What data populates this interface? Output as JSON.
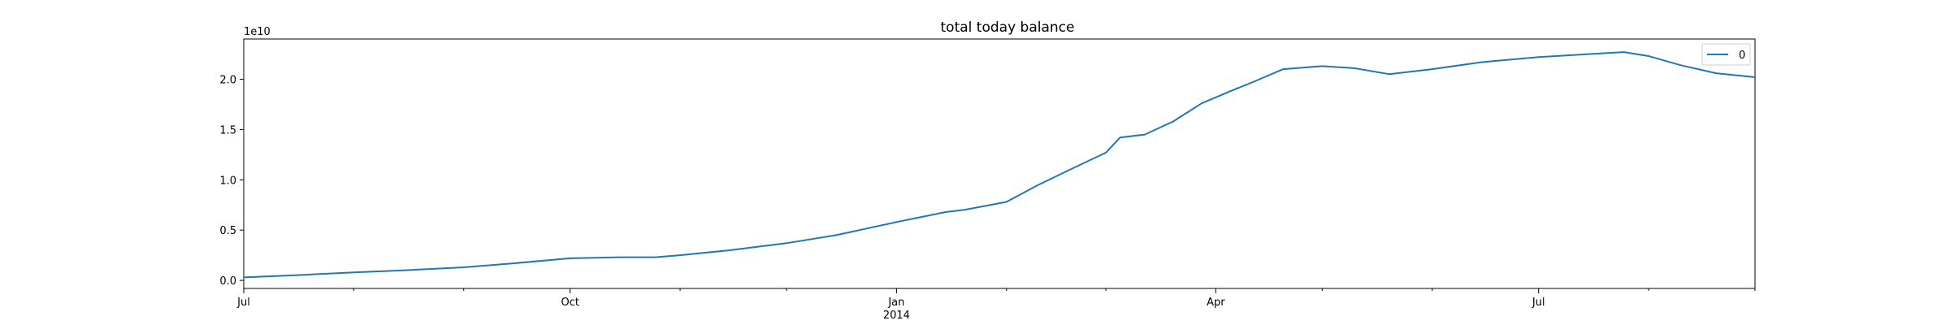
{
  "chart_data": {
    "type": "line",
    "title": "total today balance",
    "xlabel": "",
    "ylabel": "",
    "y_offset_label": "1e10",
    "x_range": [
      "2013-07-01",
      "2014-08-31"
    ],
    "ylim": [
      -0.08,
      2.4
    ],
    "y_unit": "1e10",
    "y_ticks": [
      {
        "value": 0.0,
        "label": "0.0"
      },
      {
        "value": 0.5,
        "label": "0.5"
      },
      {
        "value": 1.0,
        "label": "1.0"
      },
      {
        "value": 1.5,
        "label": "1.5"
      },
      {
        "value": 2.0,
        "label": "2.0"
      }
    ],
    "x_major_ticks": [
      {
        "date": "2013-07-01",
        "label": "Jul",
        "sublabel": ""
      },
      {
        "date": "2013-10-01",
        "label": "Oct",
        "sublabel": ""
      },
      {
        "date": "2014-01-01",
        "label": "Jan",
        "sublabel": "2014"
      },
      {
        "date": "2014-04-01",
        "label": "Apr",
        "sublabel": ""
      },
      {
        "date": "2014-07-01",
        "label": "Jul",
        "sublabel": ""
      }
    ],
    "x_minor_ticks": [
      "2013-08-01",
      "2013-09-01",
      "2013-11-01",
      "2013-12-01",
      "2014-02-01",
      "2014-03-01",
      "2014-05-01",
      "2014-06-01",
      "2014-08-01",
      "2014-08-31"
    ],
    "legend": {
      "position": "top-right"
    },
    "series": [
      {
        "name": "0",
        "color": "#1f77b4",
        "points": [
          [
            "2013-07-01",
            0.03
          ],
          [
            "2013-07-15",
            0.05
          ],
          [
            "2013-08-01",
            0.08
          ],
          [
            "2013-08-15",
            0.1
          ],
          [
            "2013-09-01",
            0.13
          ],
          [
            "2013-09-15",
            0.17
          ],
          [
            "2013-10-01",
            0.22
          ],
          [
            "2013-10-15",
            0.23
          ],
          [
            "2013-10-25",
            0.23
          ],
          [
            "2013-11-01",
            0.25
          ],
          [
            "2013-11-15",
            0.3
          ],
          [
            "2013-12-01",
            0.37
          ],
          [
            "2013-12-15",
            0.45
          ],
          [
            "2014-01-01",
            0.58
          ],
          [
            "2014-01-15",
            0.68
          ],
          [
            "2014-01-20",
            0.7
          ],
          [
            "2014-02-01",
            0.78
          ],
          [
            "2014-02-10",
            0.95
          ],
          [
            "2014-02-20",
            1.12
          ],
          [
            "2014-03-01",
            1.27
          ],
          [
            "2014-03-05",
            1.42
          ],
          [
            "2014-03-12",
            1.45
          ],
          [
            "2014-03-20",
            1.58
          ],
          [
            "2014-03-28",
            1.76
          ],
          [
            "2014-04-05",
            1.88
          ],
          [
            "2014-04-12",
            1.98
          ],
          [
            "2014-04-20",
            2.1
          ],
          [
            "2014-05-01",
            2.13
          ],
          [
            "2014-05-10",
            2.11
          ],
          [
            "2014-05-20",
            2.05
          ],
          [
            "2014-06-01",
            2.1
          ],
          [
            "2014-06-15",
            2.17
          ],
          [
            "2014-07-01",
            2.22
          ],
          [
            "2014-07-15",
            2.25
          ],
          [
            "2014-07-25",
            2.27
          ],
          [
            "2014-08-01",
            2.23
          ],
          [
            "2014-08-10",
            2.14
          ],
          [
            "2014-08-20",
            2.06
          ],
          [
            "2014-08-31",
            2.02
          ]
        ]
      }
    ]
  }
}
